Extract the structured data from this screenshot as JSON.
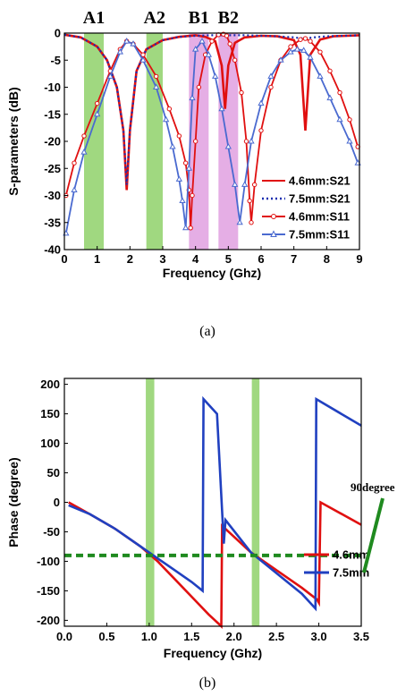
{
  "chart_data": [
    {
      "type": "line",
      "caption": "(a)",
      "xlabel": "Frequency (Ghz)",
      "ylabel": "S-parameters (dB)",
      "xlim": [
        0,
        9
      ],
      "ylim": [
        -40,
        0
      ],
      "xticks": [
        "0",
        "1",
        "2",
        "3",
        "4",
        "5",
        "6",
        "7",
        "8",
        "9"
      ],
      "yticks": [
        "0",
        "-5",
        "-10",
        "-15",
        "-20",
        "-25",
        "-30",
        "-35",
        "-40"
      ],
      "legend_position": "bottom-right",
      "bands": [
        {
          "label": "A1",
          "x0": 0.6,
          "x1": 1.2,
          "color": "#8fd16a"
        },
        {
          "label": "A2",
          "x0": 2.5,
          "x1": 3.0,
          "color": "#8fd16a"
        },
        {
          "label": "B1",
          "x0": 3.8,
          "x1": 4.4,
          "color": "#e0a0e0"
        },
        {
          "label": "B2",
          "x0": 4.7,
          "x1": 5.3,
          "color": "#e0a0e0"
        }
      ],
      "series": [
        {
          "name": "4.6mm:S21",
          "color": "#e01010",
          "style": "solid",
          "x": [
            0.0,
            0.5,
            1.0,
            1.3,
            1.6,
            1.8,
            1.9,
            2.0,
            2.2,
            2.5,
            3.0,
            3.5,
            4.0,
            4.3,
            4.6,
            4.8,
            4.9,
            5.0,
            5.2,
            5.5,
            6.0,
            6.5,
            7.0,
            7.2,
            7.35,
            7.5,
            7.8,
            8.2,
            9.0
          ],
          "y": [
            -0.3,
            -0.8,
            -2.5,
            -5,
            -10,
            -18,
            -29,
            -18,
            -7,
            -3,
            -1.3,
            -0.7,
            -0.4,
            -0.7,
            -1.5,
            -6,
            -14,
            -6,
            -1.8,
            -0.8,
            -0.5,
            -0.6,
            -1.3,
            -4,
            -18,
            -4,
            -1.2,
            -0.6,
            -0.4
          ]
        },
        {
          "name": "7.5mm:S21",
          "color": "#1a2fb0",
          "style": "dotted",
          "x": [
            0.0,
            0.5,
            1.0,
            1.3,
            1.6,
            1.8,
            1.9,
            2.0,
            2.2,
            2.5,
            3.0,
            3.5,
            4.0,
            4.5,
            5.0,
            5.5,
            6.0,
            6.5,
            7.0,
            7.3,
            7.6,
            8.0,
            8.5,
            9.0
          ],
          "y": [
            -0.3,
            -0.8,
            -2.5,
            -5,
            -10,
            -18,
            -28,
            -18,
            -7,
            -3,
            -1.3,
            -0.7,
            -0.5,
            -0.4,
            -0.4,
            -0.4,
            -0.5,
            -0.6,
            -0.8,
            -1.0,
            -0.8,
            -0.6,
            -0.5,
            -0.4
          ]
        },
        {
          "name": "4.6mm:S11",
          "color": "#e01010",
          "style": "solid-circle",
          "x": [
            0.05,
            0.3,
            0.6,
            1.0,
            1.4,
            1.7,
            1.9,
            2.1,
            2.4,
            2.8,
            3.2,
            3.5,
            3.7,
            3.8,
            3.85,
            3.9,
            4.0,
            4.1,
            4.3,
            4.5,
            4.7,
            4.85,
            4.95,
            5.05,
            5.2,
            5.4,
            5.55,
            5.65,
            5.7,
            5.8,
            6.0,
            6.3,
            6.6,
            6.9,
            7.2,
            7.35,
            7.5,
            7.8,
            8.1,
            8.4,
            8.7,
            8.95
          ],
          "y": [
            -30,
            -24,
            -19,
            -13,
            -7,
            -3,
            -1.5,
            -2,
            -4,
            -8,
            -14,
            -19,
            -24,
            -29,
            -36,
            -30,
            -20,
            -10,
            -4,
            -1.5,
            -0.3,
            -0.2,
            -0.5,
            -2,
            -5,
            -11,
            -20,
            -31,
            -35,
            -28,
            -18,
            -10,
            -5,
            -2.5,
            -1.2,
            -1,
            -1.5,
            -3.5,
            -7,
            -11,
            -16,
            -21
          ]
        },
        {
          "name": "7.5mm:S11",
          "color": "#4a6ad0",
          "style": "solid-triangle",
          "x": [
            0.05,
            0.3,
            0.6,
            1.0,
            1.4,
            1.7,
            1.9,
            2.1,
            2.4,
            2.8,
            3.1,
            3.3,
            3.5,
            3.6,
            3.7,
            3.8,
            3.9,
            4.0,
            4.2,
            4.4,
            4.6,
            4.8,
            5.0,
            5.2,
            5.35,
            5.5,
            5.7,
            6.0,
            6.3,
            6.6,
            6.9,
            7.1,
            7.3,
            7.5,
            7.8,
            8.1,
            8.4,
            8.7,
            8.95
          ],
          "y": [
            -37,
            -29,
            -22,
            -15,
            -8,
            -3.5,
            -1.5,
            -2,
            -5,
            -10,
            -16,
            -21,
            -27,
            -31,
            -36,
            -25,
            -12,
            -3,
            -1.5,
            -4,
            -8,
            -14,
            -21,
            -28,
            -35,
            -28,
            -20,
            -13,
            -8,
            -5,
            -3.5,
            -3,
            -3.2,
            -4.5,
            -8,
            -12,
            -16,
            -20,
            -24
          ]
        }
      ]
    },
    {
      "type": "line",
      "caption": "(b)",
      "xlabel": "Frequency (Ghz)",
      "ylabel": "Phase (degree)",
      "xlim": [
        0,
        3.5
      ],
      "ylim": [
        -210,
        210
      ],
      "xticks": [
        "0.0",
        "0.5",
        "1.0",
        "1.5",
        "2.0",
        "2.5",
        "3.0",
        "3.5"
      ],
      "yticks": [
        "200",
        "150",
        "100",
        "50",
        "0",
        "-50",
        "-100",
        "-150",
        "-200"
      ],
      "legend_position": "bottom-right",
      "annotation": "90degree",
      "reference_line": {
        "y": -90,
        "color": "#1f8a1f",
        "style": "dashed"
      },
      "bands": [
        {
          "x0": 0.96,
          "x1": 1.06,
          "color": "#8fd16a"
        },
        {
          "x0": 2.21,
          "x1": 2.3,
          "color": "#8fd16a"
        }
      ],
      "series": [
        {
          "name": "4.6mm",
          "color": "#e01010",
          "x": [
            0.05,
            0.3,
            0.6,
            0.9,
            1.1,
            1.3,
            1.5,
            1.7,
            1.85,
            1.86,
            1.9,
            2.2,
            2.5,
            2.8,
            2.98,
            3.0,
            3.02,
            3.5
          ],
          "y": [
            0,
            -20,
            -45,
            -75,
            -100,
            -130,
            -160,
            -190,
            -210,
            -40,
            -45,
            -85,
            -115,
            -145,
            -165,
            -170,
            0,
            -38
          ]
        },
        {
          "name": "7.5mm",
          "color": "#2040c0",
          "x": [
            0.05,
            0.3,
            0.6,
            0.9,
            1.1,
            1.3,
            1.5,
            1.63,
            1.64,
            1.8,
            1.88,
            1.9,
            2.2,
            2.5,
            2.8,
            2.96,
            2.97,
            3.5
          ],
          "y": [
            -5,
            -20,
            -45,
            -75,
            -95,
            -115,
            -135,
            -150,
            175,
            150,
            -70,
            -30,
            -85,
            -120,
            -155,
            -180,
            175,
            130
          ]
        }
      ]
    }
  ]
}
